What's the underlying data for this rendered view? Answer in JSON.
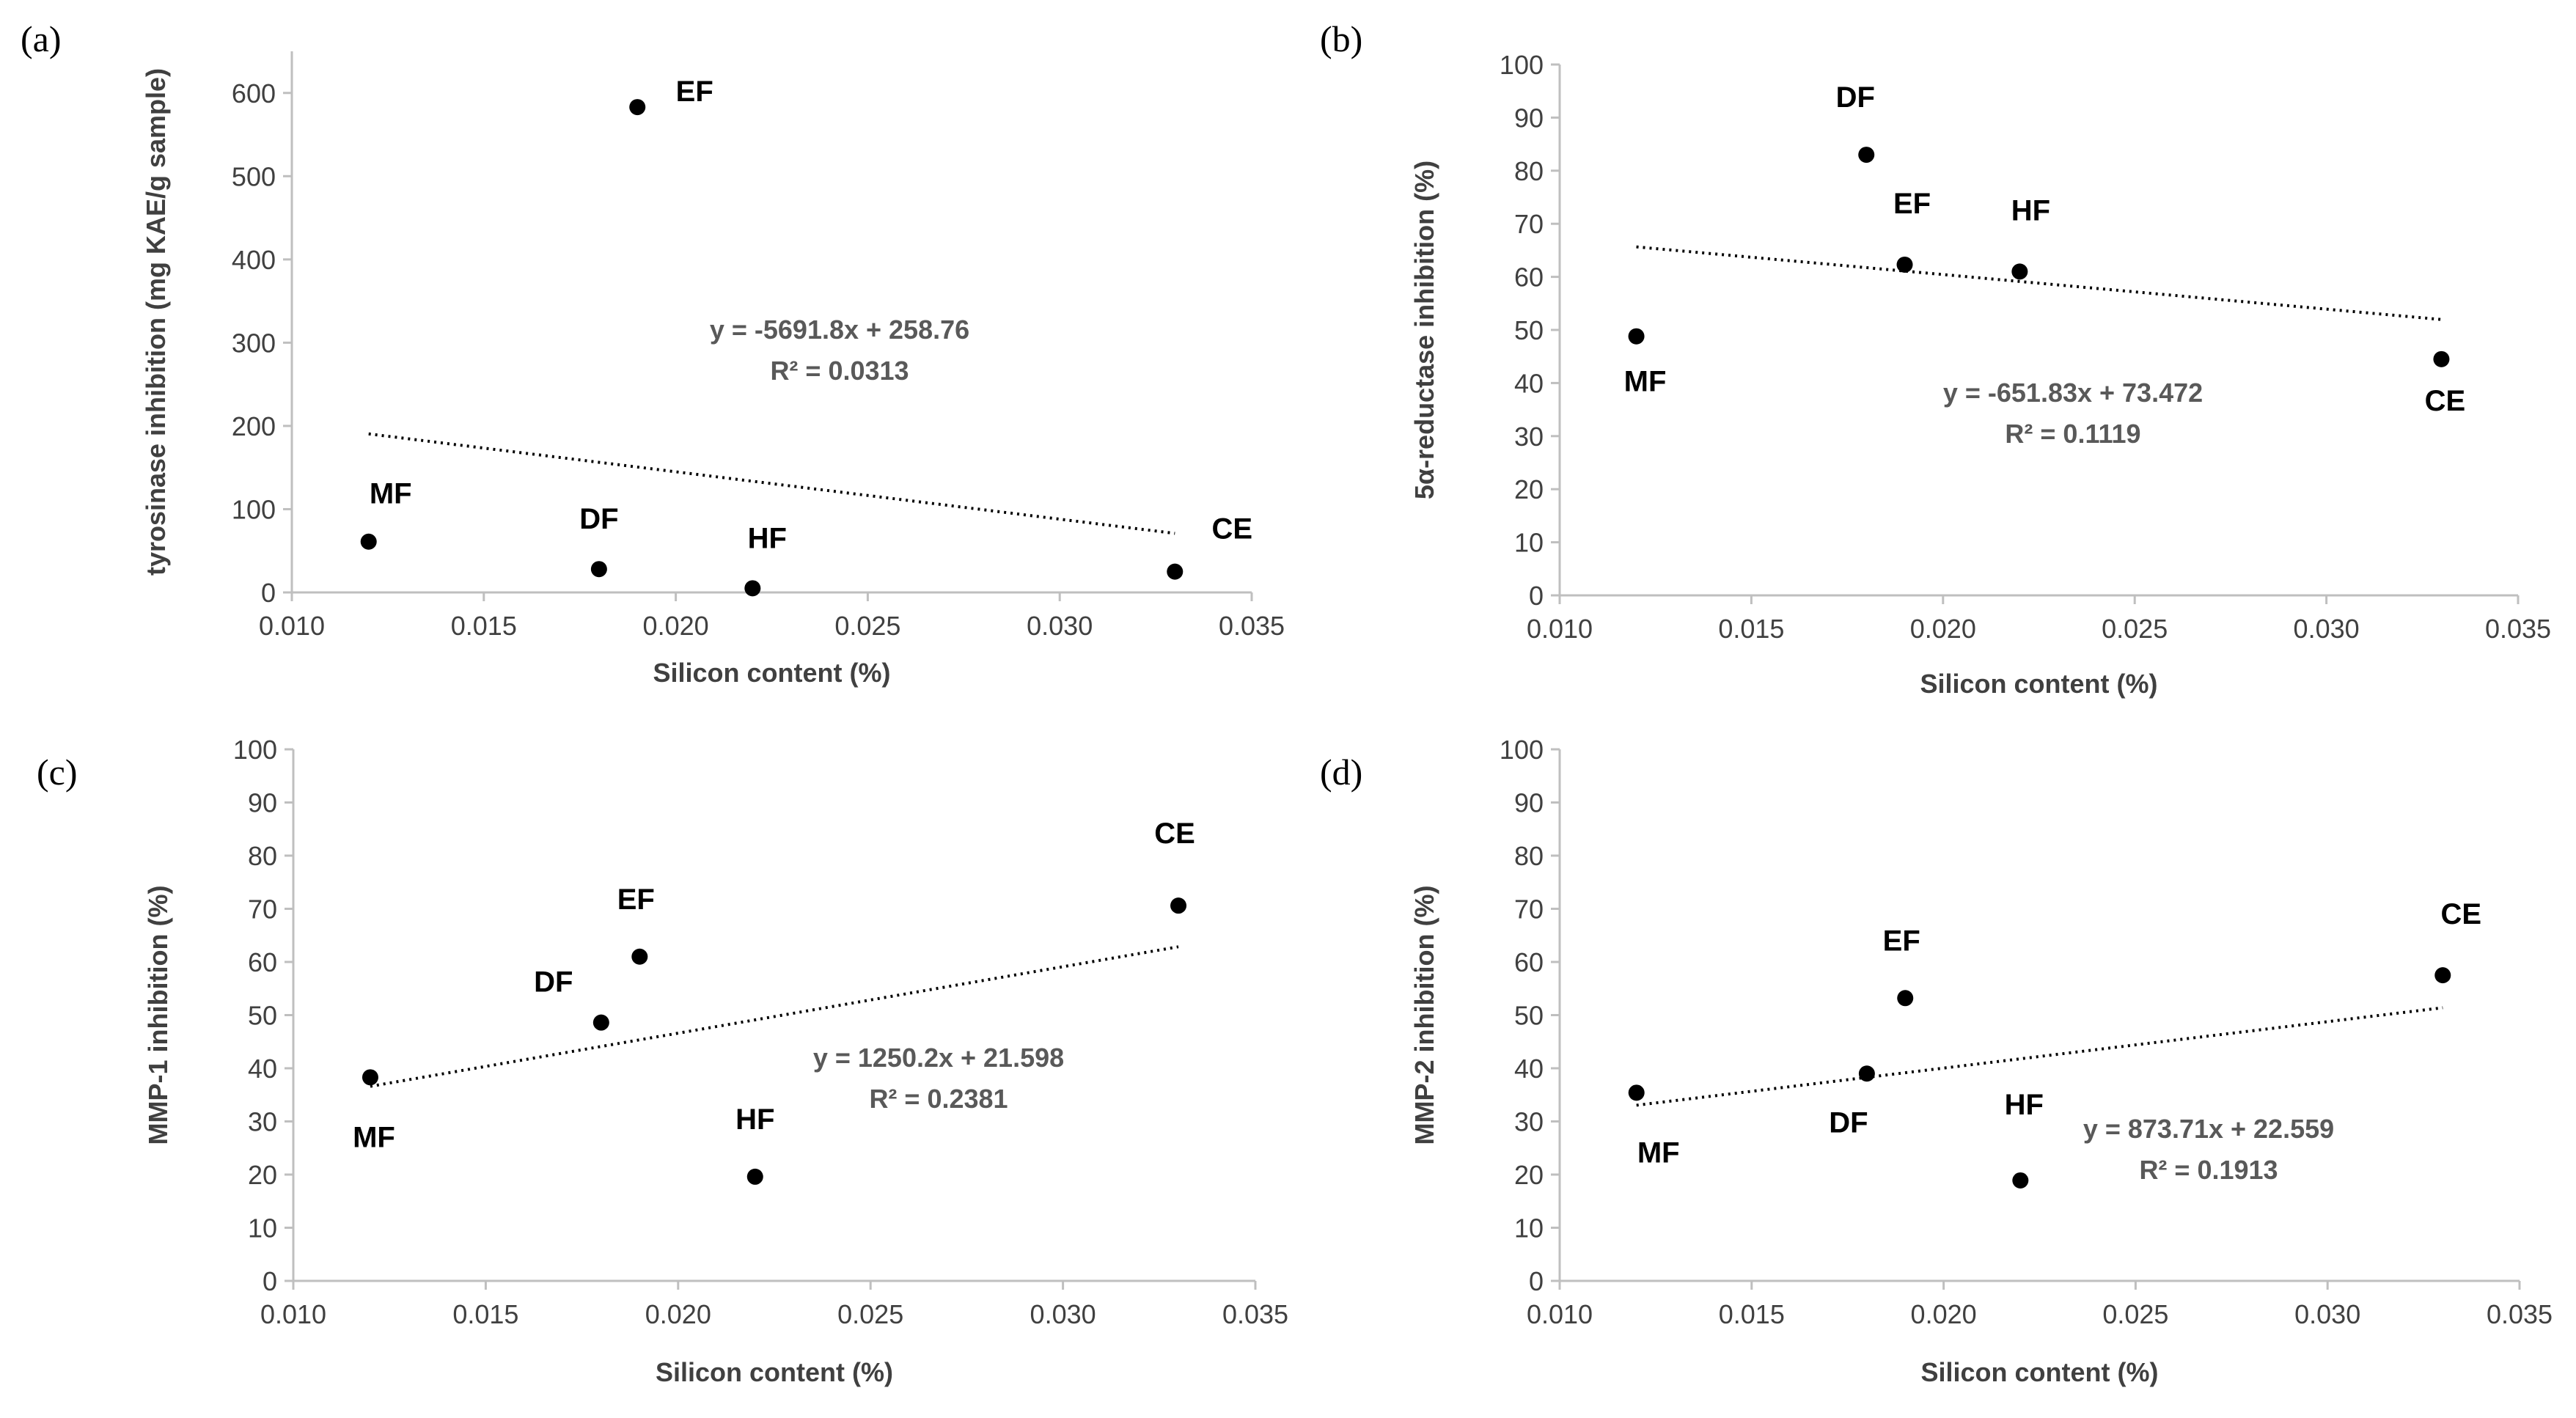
{
  "chart_data": [
    {
      "panel": "(a)",
      "type": "scatter",
      "xlabel": "Silicon content (%)",
      "ylabel": "tyrosinase  inhibition (mg KAE/g sample)",
      "xlim": [
        0.01,
        0.035
      ],
      "ylim": [
        0,
        650
      ],
      "xticks": [
        "0.010",
        "0.015",
        "0.020",
        "0.025",
        "0.030",
        "0.035"
      ],
      "yticks": [
        "0",
        "100",
        "200",
        "300",
        "400",
        "500",
        "600"
      ],
      "points": [
        {
          "label": "MF",
          "x": 0.012,
          "y": 61
        },
        {
          "label": "DF",
          "x": 0.018,
          "y": 28
        },
        {
          "label": "EF",
          "x": 0.019,
          "y": 583
        },
        {
          "label": "HF",
          "x": 0.022,
          "y": 5
        },
        {
          "label": "CE",
          "x": 0.033,
          "y": 25
        }
      ],
      "trendline": {
        "slope": -5691.8,
        "intercept": 258.76
      },
      "equation": "y = -5691.8x + 258.76",
      "r2": "R² = 0.0313"
    },
    {
      "panel": "(b)",
      "type": "scatter",
      "xlabel": "Silicon content (%)",
      "ylabel": "5α-reductase inhibition (%)",
      "xlim": [
        0.01,
        0.035
      ],
      "ylim": [
        0,
        100
      ],
      "xticks": [
        "0.010",
        "0.015",
        "0.020",
        "0.025",
        "0.030",
        "0.035"
      ],
      "yticks": [
        "0",
        "10",
        "20",
        "30",
        "40",
        "50",
        "60",
        "70",
        "80",
        "90",
        "100"
      ],
      "points": [
        {
          "label": "MF",
          "x": 0.012,
          "y": 48.8
        },
        {
          "label": "DF",
          "x": 0.018,
          "y": 83.0
        },
        {
          "label": "EF",
          "x": 0.019,
          "y": 62.3
        },
        {
          "label": "HF",
          "x": 0.022,
          "y": 61.0
        },
        {
          "label": "CE",
          "x": 0.033,
          "y": 44.5
        }
      ],
      "trendline": {
        "slope": -651.83,
        "intercept": 73.472
      },
      "equation": "y = -651.83x + 73.472",
      "r2": "R² = 0.1119"
    },
    {
      "panel": "(c)",
      "type": "scatter",
      "xlabel": "Silicon content (%)",
      "ylabel": "MMP-1 inhibition (%)",
      "xlim": [
        0.01,
        0.035
      ],
      "ylim": [
        0,
        100
      ],
      "xticks": [
        "0.010",
        "0.015",
        "0.020",
        "0.025",
        "0.030",
        "0.035"
      ],
      "yticks": [
        "0",
        "10",
        "20",
        "30",
        "40",
        "50",
        "60",
        "70",
        "80",
        "90",
        "100"
      ],
      "points": [
        {
          "label": "MF",
          "x": 0.012,
          "y": 38.3
        },
        {
          "label": "DF",
          "x": 0.018,
          "y": 48.6
        },
        {
          "label": "EF",
          "x": 0.019,
          "y": 61.0
        },
        {
          "label": "HF",
          "x": 0.022,
          "y": 19.6
        },
        {
          "label": "CE",
          "x": 0.033,
          "y": 70.6
        }
      ],
      "trendline": {
        "slope": 1250.2,
        "intercept": 21.598
      },
      "equation": "y = 1250.2x + 21.598",
      "r2": "R² = 0.2381"
    },
    {
      "panel": "(d)",
      "type": "scatter",
      "xlabel": "Silicon content (%)",
      "ylabel": "MMP-2 inhibition (%)",
      "xlim": [
        0.01,
        0.035
      ],
      "ylim": [
        0,
        100
      ],
      "xticks": [
        "0.010",
        "0.015",
        "0.020",
        "0.025",
        "0.030",
        "0.035"
      ],
      "yticks": [
        "0",
        "10",
        "20",
        "30",
        "40",
        "50",
        "60",
        "70",
        "80",
        "90",
        "100"
      ],
      "points": [
        {
          "label": "MF",
          "x": 0.012,
          "y": 35.4
        },
        {
          "label": "DF",
          "x": 0.018,
          "y": 39.0
        },
        {
          "label": "EF",
          "x": 0.019,
          "y": 53.2
        },
        {
          "label": "HF",
          "x": 0.022,
          "y": 18.9
        },
        {
          "label": "CE",
          "x": 0.033,
          "y": 57.5
        }
      ],
      "trendline": {
        "slope": 873.71,
        "intercept": 22.559
      },
      "equation": "y = 873.71x + 22.559",
      "r2": "R² = 0.1913"
    }
  ]
}
